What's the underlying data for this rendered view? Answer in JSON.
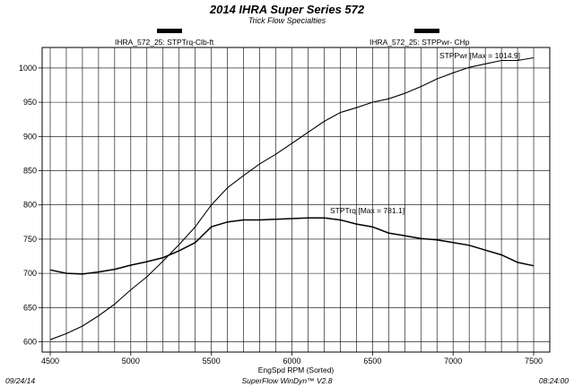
{
  "chart_data": {
    "type": "line",
    "title": "2014 IHRA Super Series 572",
    "subtitle": "Trick Flow Specialties",
    "xlabel": "EngSpd  RPM    (Sorted)",
    "left_axis_header": "IHRA_572_25: STPTrq-Clb-ft",
    "right_axis_header": "IHRA_572_25: STPPwr- CHp",
    "xlim": [
      4450,
      7600
    ],
    "ylim": [
      585,
      1030
    ],
    "x_ticks": [
      4500,
      5000,
      5500,
      6000,
      6500,
      7000,
      7500
    ],
    "y_ticks": [
      600,
      650,
      700,
      750,
      800,
      850,
      900,
      950,
      1000
    ],
    "grid": true,
    "series": [
      {
        "name": "STPPwr",
        "label": "STPPwr [Max = 1014.9]",
        "x": [
          4500,
          4600,
          4700,
          4800,
          4900,
          5000,
          5100,
          5200,
          5300,
          5400,
          5500,
          5600,
          5700,
          5800,
          5900,
          6000,
          6100,
          6200,
          6300,
          6400,
          6500,
          6600,
          6700,
          6800,
          6900,
          7000,
          7100,
          7200,
          7300,
          7400,
          7500
        ],
        "values": [
          603,
          612,
          623,
          638,
          655,
          676,
          695,
          718,
          742,
          768,
          800,
          825,
          843,
          860,
          874,
          890,
          906,
          922,
          935,
          942,
          950,
          955,
          963,
          973,
          984,
          993,
          1001,
          1006,
          1011,
          1011,
          1015
        ]
      },
      {
        "name": "STPTrq",
        "label": "STPTrq [Max = 781.1]",
        "x": [
          4500,
          4600,
          4700,
          4800,
          4900,
          5000,
          5100,
          5200,
          5300,
          5400,
          5500,
          5600,
          5700,
          5800,
          5900,
          6000,
          6100,
          6200,
          6300,
          6400,
          6500,
          6600,
          6700,
          6800,
          6900,
          7000,
          7100,
          7200,
          7300,
          7400,
          7500
        ],
        "values": [
          705,
          700,
          699,
          702,
          706,
          712,
          717,
          723,
          733,
          745,
          768,
          775,
          778,
          778,
          779,
          780,
          781,
          781,
          778,
          772,
          768,
          759,
          755,
          751,
          749,
          745,
          741,
          734,
          727,
          716,
          711
        ]
      }
    ],
    "footer": {
      "left": "09/24/14",
      "center": "SuperFlow WinDyn™ V2.8",
      "right": "08:24:00"
    }
  }
}
